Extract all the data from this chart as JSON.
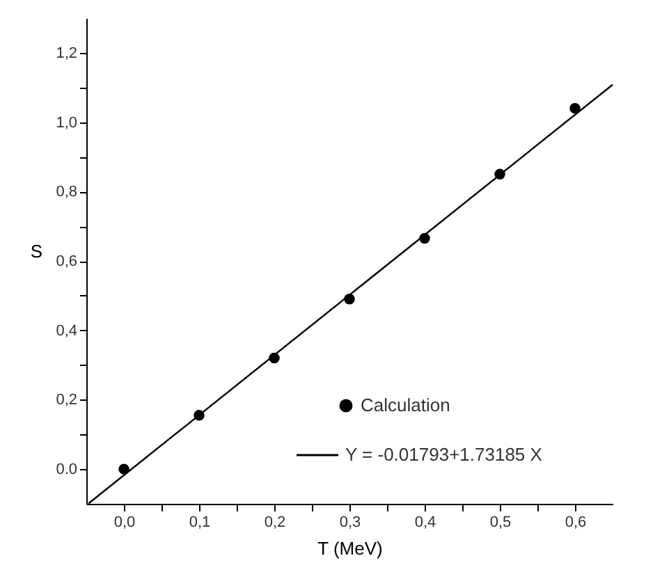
{
  "chart_data": {
    "type": "scatter",
    "xlabel": "T (MeV)",
    "ylabel": "S",
    "xlim": [
      -0.05,
      0.65
    ],
    "ylim": [
      -0.1,
      1.3
    ],
    "xticks": [
      {
        "value": 0,
        "label": "0,0"
      },
      {
        "value": 0.1,
        "label": "0,1"
      },
      {
        "value": 0.2,
        "label": "0,2"
      },
      {
        "value": 0.3,
        "label": "0,3"
      },
      {
        "value": 0.4,
        "label": "0,4"
      },
      {
        "value": 0.5,
        "label": "0,5"
      },
      {
        "value": 0.6,
        "label": "0,6"
      },
      {
        "value": 0.05,
        "label": null
      },
      {
        "value": 0.15,
        "label": null
      },
      {
        "value": 0.25,
        "label": null
      },
      {
        "value": 0.35,
        "label": null
      },
      {
        "value": 0.45,
        "label": null
      },
      {
        "value": 0.55,
        "label": null
      }
    ],
    "yticks": [
      {
        "value": 0,
        "label": "0.0"
      },
      {
        "value": 0.2,
        "label": "0,2"
      },
      {
        "value": 0.4,
        "label": "0,4"
      },
      {
        "value": 0.6,
        "label": "0,6"
      },
      {
        "value": 0.8,
        "label": "0,8"
      },
      {
        "value": 1,
        "label": "1,0"
      },
      {
        "value": 1.2,
        "label": "1,2"
      },
      {
        "value": 0.1,
        "label": null
      },
      {
        "value": 0.3,
        "label": null
      },
      {
        "value": 0.5,
        "label": null
      },
      {
        "value": 0.7,
        "label": null
      },
      {
        "value": 0.9,
        "label": null
      },
      {
        "value": 1.1,
        "label": null
      }
    ],
    "series": [
      {
        "name": "Calculation",
        "color": "#000000",
        "marker": "circle",
        "x": [
          0,
          0.1,
          0.2,
          0.3,
          0.4,
          0.5,
          0.6
        ],
        "values": [
          0,
          0.155,
          0.32,
          0.49,
          0.665,
          0.85,
          1.04
        ]
      },
      {
        "name": "Y = -0.01793+1.73185 X",
        "type": "line",
        "color": "#000000",
        "line_style": "solid",
        "x": [
          -0.047,
          0.65
        ],
        "values": [
          -0.099,
          1.108
        ]
      }
    ],
    "legend": "bottom right",
    "grid": false
  }
}
